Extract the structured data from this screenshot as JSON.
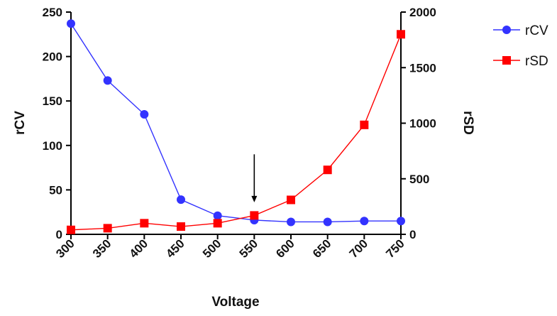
{
  "chart_data": {
    "type": "line",
    "title": "",
    "xlabel": "Voltage",
    "ylabel_left": "rCV",
    "ylabel_right": "rSD",
    "x": [
      300,
      350,
      400,
      450,
      500,
      550,
      600,
      650,
      700,
      750
    ],
    "x_ticks": [
      "300",
      "350",
      "400",
      "450",
      "500",
      "550",
      "600",
      "650",
      "700",
      "750"
    ],
    "ylim_left": [
      0,
      250
    ],
    "y_ticks_left": [
      "0",
      "50",
      "100",
      "150",
      "200",
      "250"
    ],
    "ylim_right": [
      0,
      2000
    ],
    "y_ticks_right": [
      "0",
      "500",
      "1000",
      "1500",
      "2000"
    ],
    "grid": false,
    "legend_position": "top-right outside",
    "series": [
      {
        "name": "rCV",
        "axis": "left",
        "marker": "circle",
        "color": "#3333ff",
        "values": [
          237,
          173,
          135,
          39,
          21,
          16,
          14,
          14,
          15,
          15
        ]
      },
      {
        "name": "rSD",
        "axis": "right",
        "marker": "square",
        "color": "#ff0000",
        "values": [
          40,
          55,
          100,
          70,
          100,
          170,
          310,
          580,
          985,
          1800
        ]
      }
    ],
    "annotations": [
      {
        "type": "arrow",
        "x": 550,
        "axis": "left",
        "y_from": 90,
        "y_to": 36,
        "color": "#000000"
      }
    ]
  }
}
